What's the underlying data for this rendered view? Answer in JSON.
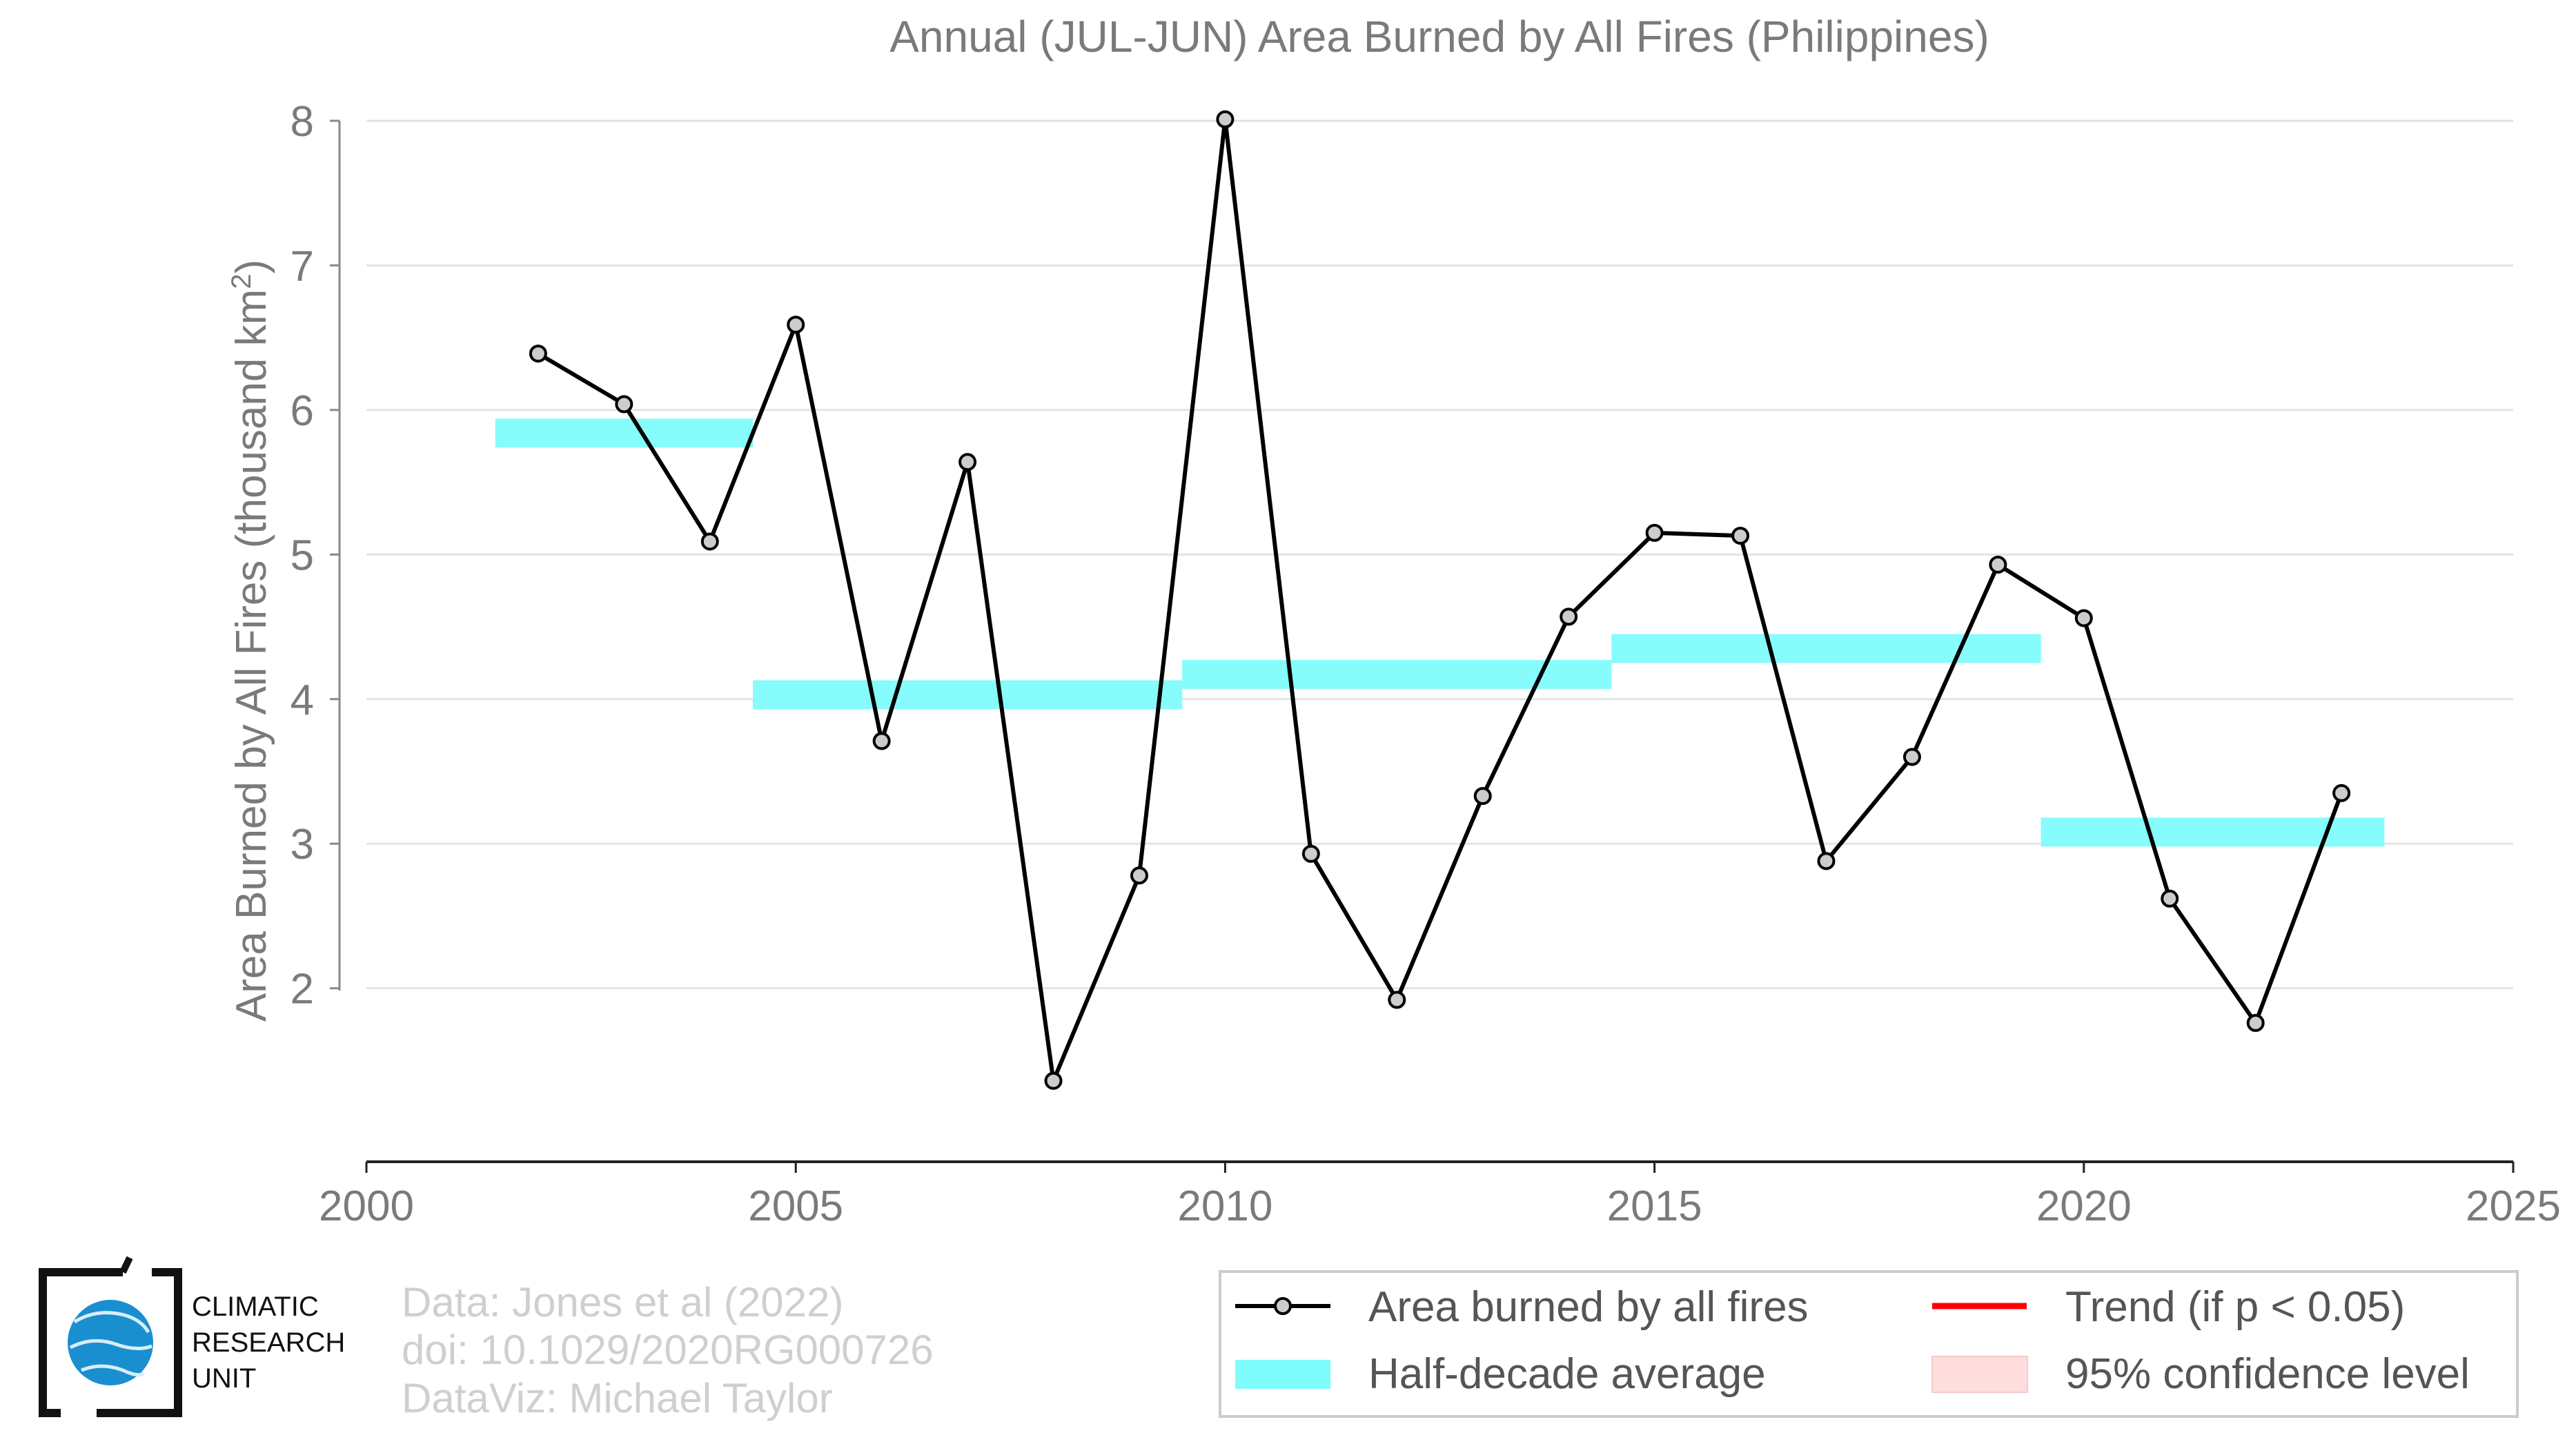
{
  "chart_data": {
    "type": "line",
    "title": "Annual (JUL-JUN) Area Burned by All Fires (Philippines)",
    "ylabel_main": "Area Burned by All Fires (thousand km",
    "ylabel_sup": "2",
    "ylabel_close": ")",
    "xlabel": "",
    "xlim": [
      2000,
      2025
    ],
    "ylim": [
      0.8,
      8.0
    ],
    "x_ticks": [
      2000,
      2005,
      2010,
      2015,
      2020,
      2025
    ],
    "y_ticks": [
      2,
      3,
      4,
      5,
      6,
      7,
      8
    ],
    "grid": true,
    "series": [
      {
        "name": "Area burned by all fires",
        "kind": "line-with-markers",
        "color": "#000000",
        "marker_fill": "#cccccc",
        "x": [
          2002,
          2003,
          2004,
          2005,
          2006,
          2007,
          2008,
          2009,
          2010,
          2011,
          2012,
          2013,
          2014,
          2015,
          2016,
          2017,
          2018,
          2019,
          2020,
          2021,
          2022,
          2023
        ],
        "y": [
          6.39,
          6.04,
          5.09,
          6.59,
          3.71,
          5.64,
          1.36,
          2.78,
          8.01,
          2.93,
          1.92,
          3.33,
          4.57,
          5.15,
          5.13,
          2.88,
          3.6,
          4.93,
          4.56,
          2.62,
          1.76,
          3.35
        ]
      },
      {
        "name": "Half-decade average",
        "kind": "bands",
        "color": "#7ffcfc",
        "segments": [
          {
            "x0": 2001.5,
            "x1": 2004.5,
            "y0": 5.74,
            "y1": 5.94
          },
          {
            "x0": 2004.5,
            "x1": 2009.5,
            "y0": 3.93,
            "y1": 4.13
          },
          {
            "x0": 2009.5,
            "x1": 2014.5,
            "y0": 4.07,
            "y1": 4.27
          },
          {
            "x0": 2014.5,
            "x1": 2019.5,
            "y0": 4.25,
            "y1": 4.45
          },
          {
            "x0": 2019.5,
            "x1": 2023.5,
            "y0": 2.98,
            "y1": 3.18
          }
        ]
      }
    ],
    "legend": {
      "placement": "bottom-right",
      "entries": [
        {
          "label": "Area burned by all fires",
          "kind": "line-marker",
          "color": "#000000"
        },
        {
          "label": "Trend (if p < 0.05)",
          "kind": "line",
          "color": "#ff0000"
        },
        {
          "label": "Half-decade average",
          "kind": "band",
          "color": "#7ffcfc"
        },
        {
          "label": "95% confidence level",
          "kind": "patch",
          "color": "#ffdddd"
        }
      ]
    }
  },
  "credits": {
    "line1": "Data: Jones et al (2022)",
    "line2": "doi: 10.1029/2020RG000726",
    "line3": "DataViz: Michael Taylor"
  },
  "logo": {
    "line1": "CLIMATIC",
    "line2": "RESEARCH",
    "line3": "UNIT",
    "color": "#1a8fd0"
  }
}
